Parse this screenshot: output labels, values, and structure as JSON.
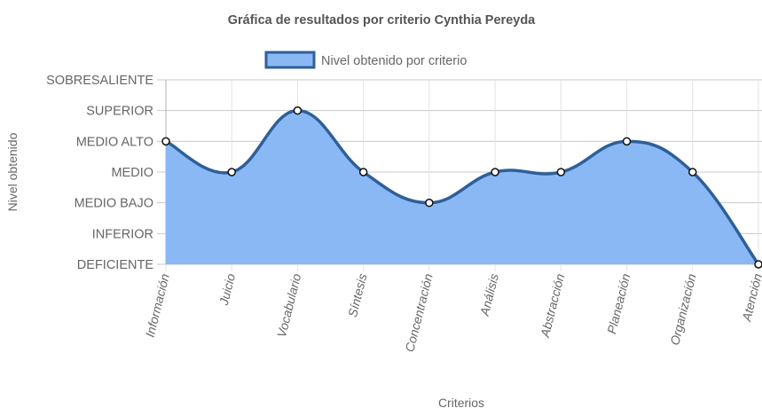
{
  "chart_data": {
    "type": "area",
    "title": "Gráfica de resultados por criterio Cynthia Pereyda",
    "xlabel": "Criterios",
    "ylabel": "Nivel obtenido",
    "legend_position": "top",
    "grid": true,
    "y_levels": [
      "DEFICIENTE",
      "INFERIOR",
      "MEDIO BAJO",
      "MEDIO",
      "MEDIO ALTO",
      "SUPERIOR",
      "SOBRESALIENTE"
    ],
    "ylim": [
      0,
      6
    ],
    "categories": [
      "Información",
      "Juicio",
      "Vocabulario",
      "Síntesis",
      "Concentración",
      "Análisis",
      "Abstracción",
      "Planeación",
      "Organización",
      "Atención"
    ],
    "series": [
      {
        "name": "Nivel obtenido por criterio",
        "values": [
          4,
          3,
          5,
          3,
          2,
          3,
          3,
          4,
          3,
          0
        ],
        "fill_color": "#8ab8f5",
        "line_color": "#2f5f99"
      }
    ]
  }
}
